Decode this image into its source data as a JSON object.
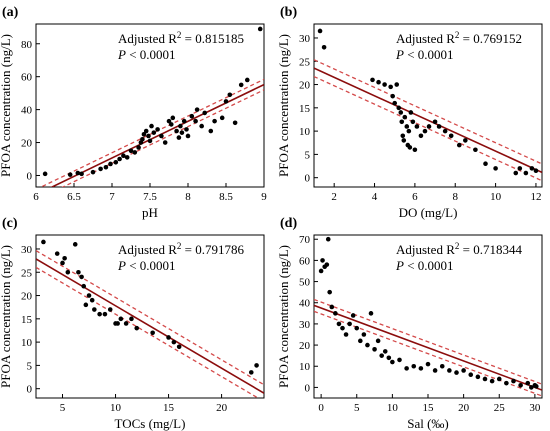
{
  "chart_data": [
    {
      "type": "scatter",
      "panel_label": "(a)",
      "xlabel": "pH",
      "ylabel": "PFOA concentration (ng/L)",
      "xlim": [
        6,
        9
      ],
      "ylim": [
        -7,
        92
      ],
      "xticks": [
        6,
        6.5,
        7,
        7.5,
        8,
        8.5,
        9
      ],
      "yticks": [
        0,
        20,
        40,
        60,
        80
      ],
      "stat_label": "Adjusted R",
      "stat_sup": "2",
      "stat_value": " = 0.815185",
      "p_italic": "P",
      "p_text": " < 0.0001",
      "fit": {
        "slope": 22.3,
        "intercept": -145.5,
        "ci_halfwidth": 3.2
      },
      "points": [
        [
          6.12,
          1
        ],
        [
          6.45,
          0.5
        ],
        [
          6.55,
          1.5
        ],
        [
          6.6,
          1
        ],
        [
          6.75,
          2
        ],
        [
          6.85,
          4
        ],
        [
          6.92,
          5
        ],
        [
          6.98,
          7
        ],
        [
          7.05,
          8
        ],
        [
          7.1,
          10
        ],
        [
          7.15,
          12
        ],
        [
          7.2,
          11
        ],
        [
          7.25,
          15
        ],
        [
          7.3,
          14
        ],
        [
          7.35,
          17
        ],
        [
          7.38,
          20
        ],
        [
          7.4,
          22
        ],
        [
          7.42,
          25
        ],
        [
          7.45,
          27
        ],
        [
          7.48,
          24
        ],
        [
          7.5,
          21
        ],
        [
          7.52,
          30
        ],
        [
          7.55,
          26
        ],
        [
          7.6,
          28
        ],
        [
          7.65,
          24
        ],
        [
          7.7,
          20
        ],
        [
          7.75,
          33
        ],
        [
          7.78,
          31
        ],
        [
          7.8,
          35
        ],
        [
          7.85,
          27
        ],
        [
          7.88,
          23
        ],
        [
          7.9,
          30
        ],
        [
          7.92,
          26
        ],
        [
          7.95,
          33
        ],
        [
          7.98,
          28
        ],
        [
          8.0,
          24
        ],
        [
          8.05,
          36
        ],
        [
          8.1,
          33
        ],
        [
          8.12,
          40
        ],
        [
          8.18,
          30
        ],
        [
          8.22,
          38
        ],
        [
          8.3,
          27
        ],
        [
          8.35,
          33
        ],
        [
          8.45,
          35
        ],
        [
          8.5,
          45
        ],
        [
          8.55,
          49
        ],
        [
          8.62,
          32
        ],
        [
          8.7,
          55
        ],
        [
          8.78,
          58
        ],
        [
          8.95,
          89
        ]
      ]
    },
    {
      "type": "scatter",
      "panel_label": "(b)",
      "xlabel": "DO (mg/L)",
      "ylabel": "PFOA concentration (ng/L)",
      "xlim": [
        1,
        12.3
      ],
      "ylim": [
        -2,
        33
      ],
      "xticks": [
        2,
        4,
        6,
        8,
        10,
        12
      ],
      "yticks": [
        0,
        5,
        10,
        15,
        20,
        25,
        30
      ],
      "stat_label": "Adjusted R",
      "stat_sup": "2",
      "stat_value": " = 0.769152",
      "p_italic": "P",
      "p_text": " < 0.0001",
      "fit": {
        "slope": -1.98,
        "intercept": 25.5,
        "ci_halfwidth": 1.8
      },
      "points": [
        [
          1.3,
          31.5
        ],
        [
          1.5,
          28
        ],
        [
          3.9,
          21
        ],
        [
          4.2,
          20.5
        ],
        [
          4.5,
          20
        ],
        [
          4.8,
          19.5
        ],
        [
          4.9,
          17.5
        ],
        [
          5.0,
          16
        ],
        [
          5.1,
          20
        ],
        [
          5.2,
          15
        ],
        [
          5.3,
          14
        ],
        [
          5.35,
          12
        ],
        [
          5.4,
          9
        ],
        [
          5.45,
          8
        ],
        [
          5.5,
          13
        ],
        [
          5.6,
          11
        ],
        [
          5.65,
          7
        ],
        [
          5.7,
          10
        ],
        [
          5.75,
          6.5
        ],
        [
          5.8,
          14
        ],
        [
          5.9,
          12
        ],
        [
          6.0,
          6
        ],
        [
          6.1,
          11
        ],
        [
          6.3,
          9
        ],
        [
          6.5,
          10
        ],
        [
          6.7,
          11
        ],
        [
          7.0,
          12
        ],
        [
          7.2,
          11
        ],
        [
          7.5,
          10
        ],
        [
          7.8,
          9
        ],
        [
          8.2,
          7
        ],
        [
          8.5,
          8
        ],
        [
          9.0,
          6
        ],
        [
          9.5,
          3
        ],
        [
          10.0,
          2
        ],
        [
          11.0,
          1
        ],
        [
          11.2,
          2
        ],
        [
          11.5,
          1
        ],
        [
          11.8,
          2
        ],
        [
          12.0,
          1.5
        ]
      ]
    },
    {
      "type": "scatter",
      "panel_label": "(c)",
      "xlabel": "TOCs (mg/L)",
      "ylabel": "PFOA concentration (ng/L)",
      "xlim": [
        2.5,
        24
      ],
      "ylim": [
        -2,
        33
      ],
      "xticks": [
        5,
        10,
        15,
        20
      ],
      "yticks": [
        0,
        5,
        10,
        15,
        20,
        25,
        30
      ],
      "stat_label": "Adjusted R",
      "stat_sup": "2",
      "stat_value": " = 0.791786",
      "p_italic": "P",
      "p_text": " < 0.0001",
      "fit": {
        "slope": -1.34,
        "intercept": 31.2,
        "ci_halfwidth": 1.8
      },
      "points": [
        [
          3.2,
          31.5
        ],
        [
          4.5,
          29
        ],
        [
          5.0,
          27
        ],
        [
          5.2,
          28
        ],
        [
          5.5,
          25
        ],
        [
          6.2,
          31
        ],
        [
          6.5,
          25
        ],
        [
          6.8,
          24
        ],
        [
          7.0,
          22
        ],
        [
          7.2,
          18
        ],
        [
          7.5,
          20
        ],
        [
          7.8,
          19
        ],
        [
          8.0,
          17
        ],
        [
          8.5,
          16
        ],
        [
          9.0,
          16
        ],
        [
          9.5,
          17
        ],
        [
          10.0,
          14
        ],
        [
          10.2,
          14
        ],
        [
          10.5,
          15
        ],
        [
          11.0,
          14
        ],
        [
          11.5,
          15
        ],
        [
          12.0,
          13
        ],
        [
          13.5,
          12
        ],
        [
          15.0,
          11
        ],
        [
          15.5,
          10
        ],
        [
          16.0,
          9
        ],
        [
          22.8,
          3.5
        ],
        [
          23.3,
          5
        ]
      ]
    },
    {
      "type": "scatter",
      "panel_label": "(d)",
      "xlabel": "Sal (‰)",
      "ylabel": "PFOA concentration (ng/L)",
      "xlim": [
        -1,
        31
      ],
      "ylim": [
        -5,
        72
      ],
      "xticks": [
        0,
        5,
        10,
        15,
        20,
        25,
        30
      ],
      "yticks": [
        0,
        10,
        20,
        30,
        40,
        50,
        60,
        70
      ],
      "stat_label": "Adjusted R",
      "stat_sup": "2",
      "stat_value": " = 0.718344",
      "p_italic": "P",
      "p_text": " < 0.0001",
      "fit": {
        "slope": -1.25,
        "intercept": 37.5,
        "ci_halfwidth": 2.8
      },
      "points": [
        [
          0,
          55
        ],
        [
          0.2,
          60
        ],
        [
          0.5,
          57
        ],
        [
          0.8,
          58
        ],
        [
          1.0,
          70
        ],
        [
          1.2,
          45
        ],
        [
          1.5,
          38
        ],
        [
          2.0,
          35
        ],
        [
          2.5,
          30
        ],
        [
          3.0,
          28
        ],
        [
          3.5,
          25
        ],
        [
          4.0,
          30
        ],
        [
          4.5,
          34
        ],
        [
          5.0,
          28
        ],
        [
          5.5,
          22
        ],
        [
          6.0,
          25
        ],
        [
          6.5,
          20
        ],
        [
          7.0,
          35
        ],
        [
          7.5,
          18
        ],
        [
          8.0,
          22
        ],
        [
          8.5,
          15
        ],
        [
          9.0,
          17
        ],
        [
          9.5,
          14
        ],
        [
          10.0,
          12
        ],
        [
          11.0,
          13
        ],
        [
          12.0,
          9
        ],
        [
          13.0,
          10
        ],
        [
          14.0,
          9
        ],
        [
          15.0,
          11
        ],
        [
          16.0,
          8
        ],
        [
          17.0,
          10
        ],
        [
          18.0,
          8
        ],
        [
          19.0,
          7
        ],
        [
          20.0,
          8
        ],
        [
          21.0,
          6
        ],
        [
          22.0,
          5
        ],
        [
          23.0,
          4
        ],
        [
          24.0,
          3
        ],
        [
          25.0,
          4
        ],
        [
          26.0,
          2
        ],
        [
          27.0,
          3
        ],
        [
          28.0,
          1
        ],
        [
          29.0,
          2
        ],
        [
          29.5,
          0
        ],
        [
          30.0,
          1
        ],
        [
          30.2,
          0.5
        ]
      ]
    }
  ]
}
